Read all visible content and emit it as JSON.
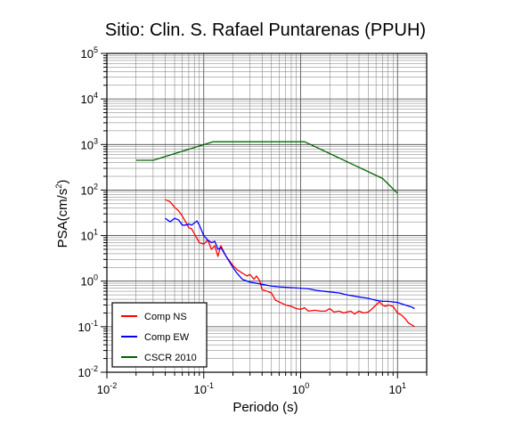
{
  "chart_data": {
    "type": "line",
    "title": "Sitio: Clin. S. Rafael Puntarenas (PPUH)",
    "xlabel": "Periodo (s)",
    "ylabel_main": "PSA(cm/s",
    "ylabel_sup": "2",
    "ylabel_close": ")",
    "x_scale": "log",
    "y_scale": "log",
    "xlim": [
      0.01,
      20
    ],
    "ylim": [
      0.01,
      100000
    ],
    "grid": true,
    "legend_position": "bottom-left",
    "x_ticks": [
      {
        "value": 0.01,
        "base": "10",
        "exp": "-2"
      },
      {
        "value": 0.1,
        "base": "10",
        "exp": "-1"
      },
      {
        "value": 1,
        "base": "10",
        "exp": "0"
      },
      {
        "value": 10,
        "base": "10",
        "exp": "1"
      }
    ],
    "y_ticks": [
      {
        "value": 0.01,
        "base": "10",
        "exp": "-2"
      },
      {
        "value": 0.1,
        "base": "10",
        "exp": "-1"
      },
      {
        "value": 1,
        "base": "10",
        "exp": "0"
      },
      {
        "value": 10,
        "base": "10",
        "exp": "1"
      },
      {
        "value": 100,
        "base": "10",
        "exp": "2"
      },
      {
        "value": 1000,
        "base": "10",
        "exp": "3"
      },
      {
        "value": 10000,
        "base": "10",
        "exp": "4"
      },
      {
        "value": 100000,
        "base": "10",
        "exp": "5"
      }
    ],
    "series": [
      {
        "name": "Comp NS",
        "color": "#ff0000",
        "points": [
          [
            0.04,
            62
          ],
          [
            0.045,
            55
          ],
          [
            0.05,
            42
          ],
          [
            0.055,
            35
          ],
          [
            0.06,
            27
          ],
          [
            0.065,
            20
          ],
          [
            0.07,
            15
          ],
          [
            0.075,
            14
          ],
          [
            0.08,
            11
          ],
          [
            0.09,
            7
          ],
          [
            0.1,
            6.5
          ],
          [
            0.11,
            8
          ],
          [
            0.12,
            5
          ],
          [
            0.13,
            6
          ],
          [
            0.14,
            3.5
          ],
          [
            0.15,
            6
          ],
          [
            0.17,
            3.5
          ],
          [
            0.2,
            2.2
          ],
          [
            0.22,
            1.8
          ],
          [
            0.25,
            1.5
          ],
          [
            0.28,
            1.3
          ],
          [
            0.3,
            1.4
          ],
          [
            0.33,
            1.1
          ],
          [
            0.35,
            1.3
          ],
          [
            0.38,
            1.0
          ],
          [
            0.4,
            0.65
          ],
          [
            0.45,
            0.6
          ],
          [
            0.5,
            0.55
          ],
          [
            0.55,
            0.38
          ],
          [
            0.6,
            0.35
          ],
          [
            0.7,
            0.3
          ],
          [
            0.8,
            0.28
          ],
          [
            0.9,
            0.25
          ],
          [
            1.0,
            0.24
          ],
          [
            1.1,
            0.26
          ],
          [
            1.2,
            0.22
          ],
          [
            1.4,
            0.23
          ],
          [
            1.6,
            0.22
          ],
          [
            1.8,
            0.22
          ],
          [
            2.0,
            0.25
          ],
          [
            2.2,
            0.21
          ],
          [
            2.5,
            0.22
          ],
          [
            2.8,
            0.2
          ],
          [
            3.0,
            0.21
          ],
          [
            3.3,
            0.22
          ],
          [
            3.6,
            0.19
          ],
          [
            4.0,
            0.22
          ],
          [
            4.5,
            0.2
          ],
          [
            5.0,
            0.21
          ],
          [
            5.5,
            0.25
          ],
          [
            6.0,
            0.3
          ],
          [
            6.5,
            0.35
          ],
          [
            7.0,
            0.3
          ],
          [
            7.5,
            0.28
          ],
          [
            8.0,
            0.3
          ],
          [
            9.0,
            0.28
          ],
          [
            10.0,
            0.2
          ],
          [
            11.0,
            0.18
          ],
          [
            12.0,
            0.15
          ],
          [
            13.0,
            0.12
          ],
          [
            14.0,
            0.11
          ],
          [
            15.0,
            0.1
          ]
        ]
      },
      {
        "name": "Comp EW",
        "color": "#0000ff",
        "points": [
          [
            0.04,
            24
          ],
          [
            0.045,
            20
          ],
          [
            0.05,
            24
          ],
          [
            0.055,
            22
          ],
          [
            0.06,
            17
          ],
          [
            0.065,
            17
          ],
          [
            0.07,
            18
          ],
          [
            0.075,
            17
          ],
          [
            0.08,
            19
          ],
          [
            0.085,
            21
          ],
          [
            0.09,
            17
          ],
          [
            0.1,
            10
          ],
          [
            0.11,
            8
          ],
          [
            0.12,
            7
          ],
          [
            0.13,
            7.5
          ],
          [
            0.14,
            5
          ],
          [
            0.15,
            5.5
          ],
          [
            0.17,
            3.5
          ],
          [
            0.2,
            2.0
          ],
          [
            0.22,
            1.5
          ],
          [
            0.25,
            1.1
          ],
          [
            0.3,
            0.95
          ],
          [
            0.35,
            0.9
          ],
          [
            0.4,
            0.85
          ],
          [
            0.5,
            0.78
          ],
          [
            0.6,
            0.75
          ],
          [
            0.8,
            0.72
          ],
          [
            1.0,
            0.7
          ],
          [
            1.2,
            0.68
          ],
          [
            1.5,
            0.62
          ],
          [
            2.0,
            0.58
          ],
          [
            2.5,
            0.55
          ],
          [
            3.0,
            0.5
          ],
          [
            4.0,
            0.45
          ],
          [
            5.0,
            0.42
          ],
          [
            6.0,
            0.38
          ],
          [
            7.0,
            0.36
          ],
          [
            8.0,
            0.36
          ],
          [
            10.0,
            0.34
          ],
          [
            12.0,
            0.3
          ],
          [
            14.0,
            0.27
          ],
          [
            15.0,
            0.25
          ]
        ]
      },
      {
        "name": "CSCR 2010",
        "color": "#006400",
        "points": [
          [
            0.02,
            450
          ],
          [
            0.03,
            450
          ],
          [
            0.125,
            1150
          ],
          [
            1.1,
            1150
          ],
          [
            7.0,
            180
          ],
          [
            10.0,
            85
          ]
        ]
      }
    ]
  }
}
